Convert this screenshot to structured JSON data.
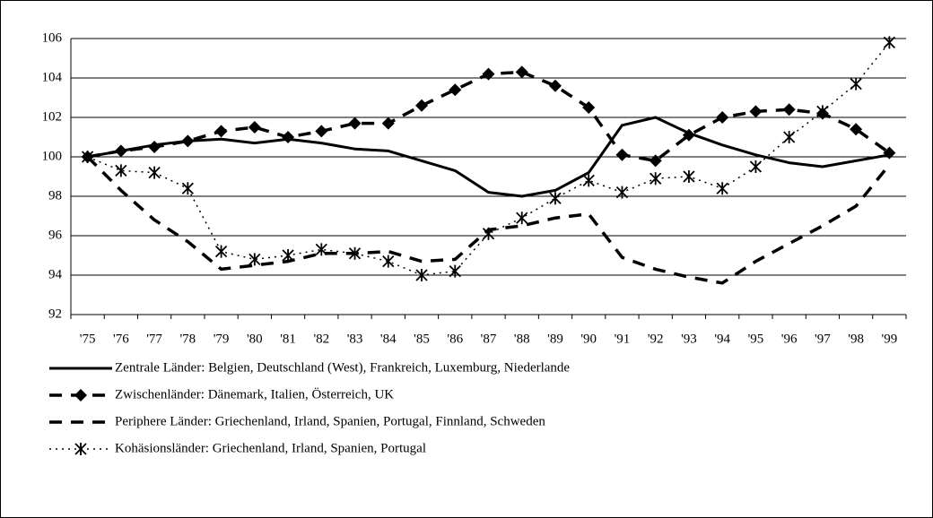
{
  "chart_data": {
    "type": "line",
    "categories": [
      "'75",
      "'76",
      "'77",
      "'78",
      "'79",
      "'80",
      "'81",
      "'82",
      "'83",
      "'84",
      "'85",
      "'86",
      "'87",
      "'88",
      "'89",
      "'90",
      "'91",
      "'92",
      "'93",
      "'94",
      "'95",
      "'96",
      "'97",
      "'98",
      "'99"
    ],
    "series": [
      {
        "name": "Zentrale Länder: Belgien, Deutschland (West), Frankreich, Luxemburg, Niederlande",
        "color": "#000000",
        "style": "solid",
        "values": [
          100,
          100.3,
          100.6,
          100.8,
          100.9,
          100.7,
          100.9,
          100.7,
          100.4,
          100.3,
          99.8,
          99.3,
          98.2,
          98.0,
          98.3,
          99.2,
          101.6,
          102.0,
          101.2,
          100.6,
          100.1,
          99.7,
          99.5,
          99.8,
          100.1
        ]
      },
      {
        "name": "Zwischenländer: Dänemark, Italien, Österreich, UK",
        "color": "#000000",
        "style": "dashed",
        "marker": "diamond",
        "values": [
          100,
          100.3,
          100.5,
          100.8,
          101.3,
          101.5,
          101.0,
          101.3,
          101.7,
          101.7,
          102.6,
          103.4,
          104.2,
          104.3,
          103.6,
          102.5,
          100.1,
          99.8,
          101.1,
          102.0,
          102.3,
          102.4,
          102.2,
          101.4,
          100.2
        ]
      },
      {
        "name": "Periphere Länder: Griechenland, Irland, Spanien, Portugal, Finnland, Schweden",
        "color": "#000000",
        "style": "dashed",
        "values": [
          100,
          98.3,
          96.8,
          95.7,
          94.3,
          94.5,
          94.7,
          95.1,
          95.1,
          95.2,
          94.7,
          94.8,
          96.3,
          96.5,
          96.9,
          97.1,
          94.9,
          94.3,
          93.9,
          93.6,
          94.7,
          95.6,
          96.5,
          97.5,
          99.6
        ]
      },
      {
        "name": "Kohäsionsländer: Griechenland, Irland, Spanien, Portugal",
        "color": "#000000",
        "style": "dotted",
        "marker": "asterisk",
        "values": [
          100,
          99.3,
          99.2,
          98.4,
          95.2,
          94.8,
          95.0,
          95.3,
          95.1,
          94.7,
          94.0,
          94.2,
          96.1,
          96.9,
          97.9,
          98.8,
          98.2,
          98.9,
          99.0,
          98.4,
          99.5,
          101.0,
          102.3,
          103.7,
          105.8
        ]
      }
    ],
    "ylim": [
      92,
      106
    ],
    "yticks": [
      92,
      94,
      96,
      98,
      100,
      102,
      104,
      106
    ],
    "grid": true
  }
}
